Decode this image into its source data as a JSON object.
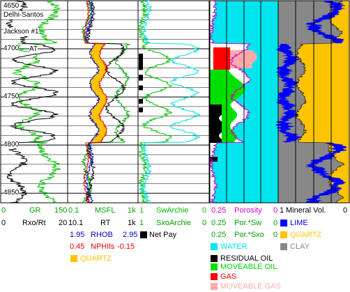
{
  "well": {
    "name_line1": "Delhi-Santos",
    "name_line2": "Jackson #1",
    "marker": "AT"
  },
  "depth": {
    "top": 4650,
    "bottom": 4860,
    "ticks": [
      "4650",
      "4700",
      "4750",
      "4800",
      "4850"
    ],
    "tick_values": [
      4650,
      4700,
      4750,
      4800,
      4850
    ]
  },
  "net_pay_intervals": [
    [
      4705,
      4722
    ],
    [
      4727,
      4733
    ],
    [
      4738,
      4743
    ],
    [
      4752,
      4757
    ],
    [
      4761,
      4766
    ]
  ],
  "legend": {
    "row1": {
      "gr_min": "0",
      "gr_label": "GR",
      "gr_max": "150",
      "msfl_min": "0.1",
      "msfl_label": "MSFL",
      "msfl_max": "1k",
      "sw_min": "1",
      "sw_label": "SwArchie",
      "sw_max": "0",
      "por_min": "0.25",
      "por_label": "Porosity",
      "por_max": "0",
      "mv_min": "1",
      "mv_label": "Mineral Vol.",
      "mv_max": "0"
    },
    "row2": {
      "rxo_min": "0",
      "rxo_label": "Rxo/Rt",
      "rxo_max": "20",
      "rt_min": "1",
      "rt_min2": "0.1",
      "rt_label": "RT",
      "rt_max": "1k",
      "sxo_min": "1",
      "sxo_label": "SxoArchie",
      "sxo_max": "0",
      "porsw_min": "0.25",
      "porsw_label": "Por.*Sw",
      "porsw_max": "0",
      "lime_label": "LIME"
    },
    "row3": {
      "rhob_min": "1.95",
      "rhob_label": "RHOB",
      "rhob_max": "2.95",
      "netpay_label": "Net Pay",
      "porsxo_min": "0.25",
      "porsxo_label": "Por.*Sxo",
      "porsxo_max": "0",
      "quartz_label": "QUARTZ"
    },
    "row4": {
      "nphi_min": "0.45",
      "nphi_label": "NPHIls",
      "nphi_max": "-0.15",
      "water_label": "WATER",
      "clay_label": "CLAY"
    },
    "row5": {
      "residual_label": "RESIDUAL OIL",
      "quartz2_label": "QUARTZ"
    },
    "row6": {
      "moveable_oil_label": "MOVEABLE OIL"
    },
    "row7": {
      "gas_label": "GAS"
    },
    "row8": {
      "moveable_gas_label": "MOVEABLE GAS"
    }
  },
  "colors": {
    "gr": "#00c000",
    "msfl": "#00a000",
    "rt": "#000000",
    "rhob": "#0000c0",
    "nphi": "#e00000",
    "sw": "#00c000",
    "sxo": "#00e0e0",
    "porosity": "#cc00cc",
    "water": "#00e5ee",
    "residual": "#000000",
    "moveable_oil": "#00e000",
    "gas": "#ff0000",
    "moveable_gas": "#ffaaaa",
    "lime": "#0000ff",
    "quartz": "#ffc400",
    "clay": "#888888"
  }
}
